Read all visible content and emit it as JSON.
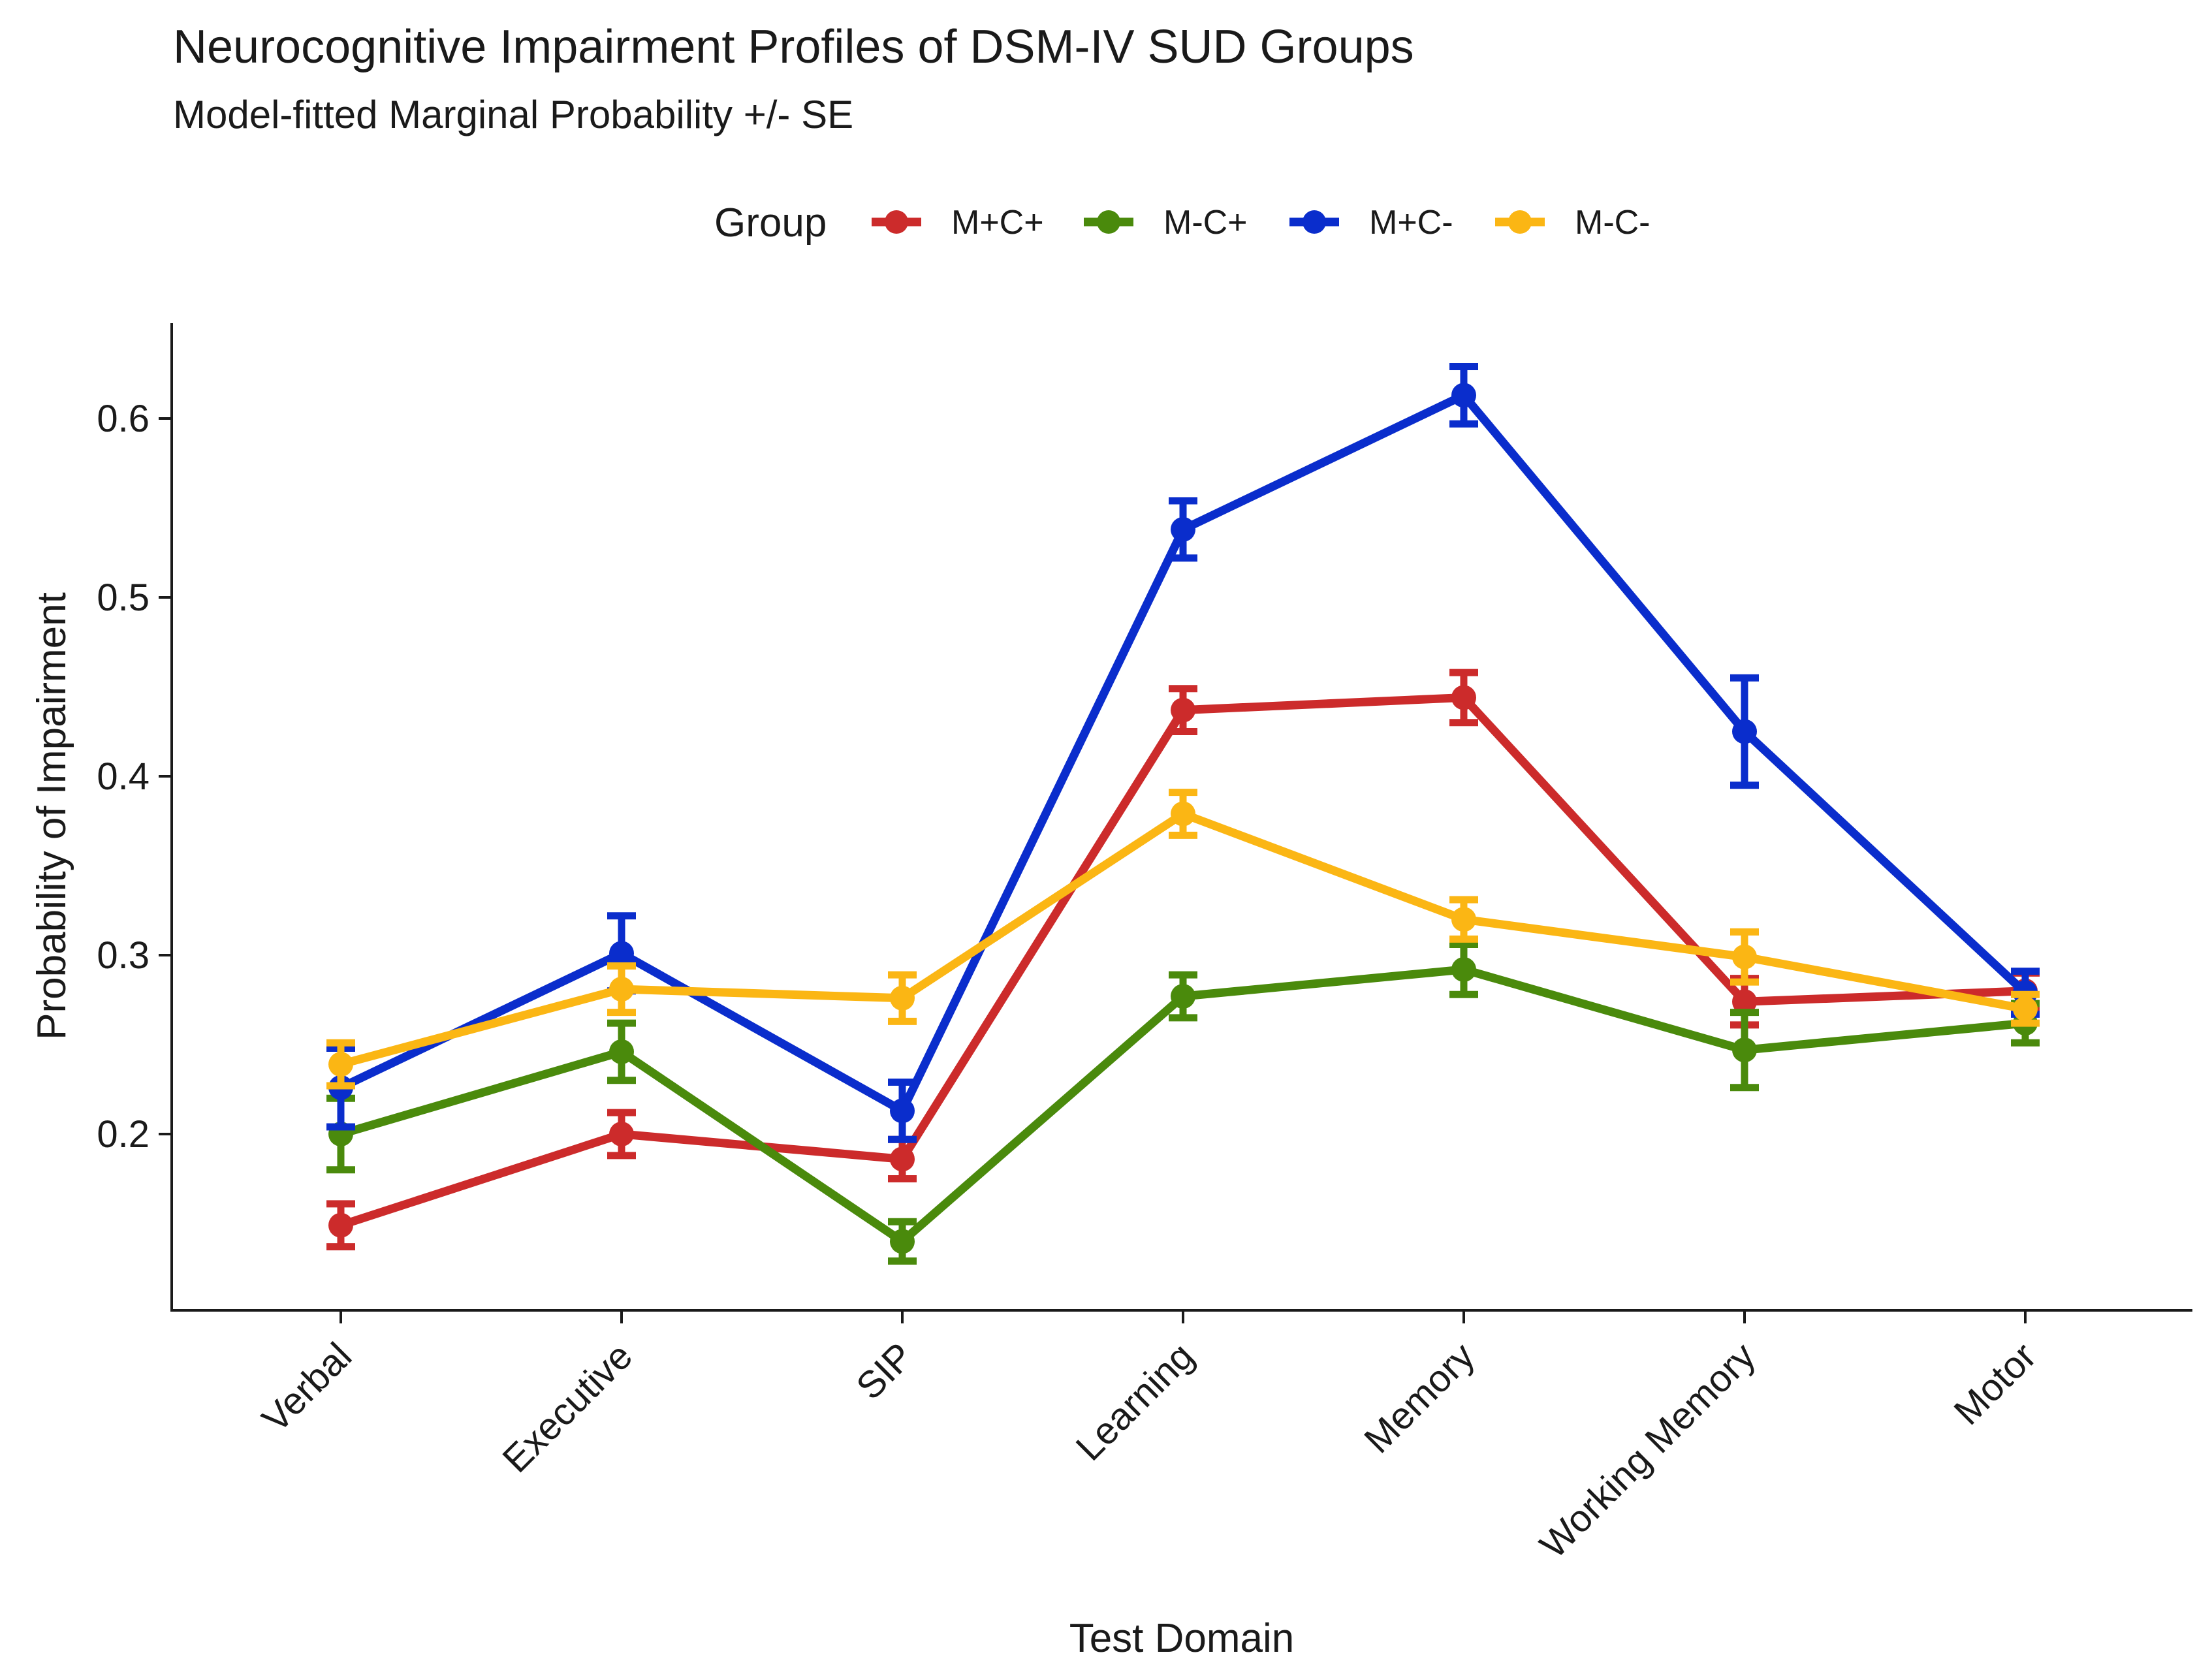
{
  "chart_data": {
    "type": "line",
    "title": "Neurocognitive Impairment Profiles of DSM-IV SUD Groups",
    "subtitle": "Model-fitted Marginal Probability +/- SE",
    "xlabel": "Test Domain",
    "ylabel": "Probability of Impairment",
    "ylim": [
      0.1,
      0.65
    ],
    "yticks": [
      0.2,
      0.3,
      0.4,
      0.5,
      0.6
    ],
    "ytick_labels": [
      "0.2",
      "0.3",
      "0.4",
      "0.5",
      "0.6"
    ],
    "grid": false,
    "legend": {
      "title": "Group",
      "position": "top"
    },
    "categories": [
      "Verbal",
      "Executive",
      "SIP",
      "Learning",
      "Memory",
      "Working Memory",
      "Motor"
    ],
    "series": [
      {
        "name": "M+C+",
        "color": "#cc2b2b",
        "values": [
          0.149,
          0.2,
          0.186,
          0.437,
          0.444,
          0.274,
          0.28
        ],
        "se": [
          0.012,
          0.012,
          0.011,
          0.012,
          0.014,
          0.013,
          0.01
        ]
      },
      {
        "name": "M-C+",
        "color": "#4a8a0c",
        "values": [
          0.2,
          0.246,
          0.14,
          0.277,
          0.292,
          0.247,
          0.262
        ],
        "se": [
          0.02,
          0.016,
          0.011,
          0.012,
          0.014,
          0.021,
          0.011
        ]
      },
      {
        "name": "M+C-",
        "color": "#0a2dcc",
        "values": [
          0.226,
          0.301,
          0.213,
          0.538,
          0.613,
          0.425,
          0.279
        ],
        "se": [
          0.022,
          0.021,
          0.016,
          0.016,
          0.016,
          0.03,
          0.012
        ]
      },
      {
        "name": "M-C-",
        "color": "#fbb614",
        "values": [
          0.239,
          0.281,
          0.276,
          0.379,
          0.32,
          0.299,
          0.27
        ],
        "se": [
          0.012,
          0.013,
          0.013,
          0.012,
          0.011,
          0.014,
          0.008
        ]
      }
    ]
  }
}
